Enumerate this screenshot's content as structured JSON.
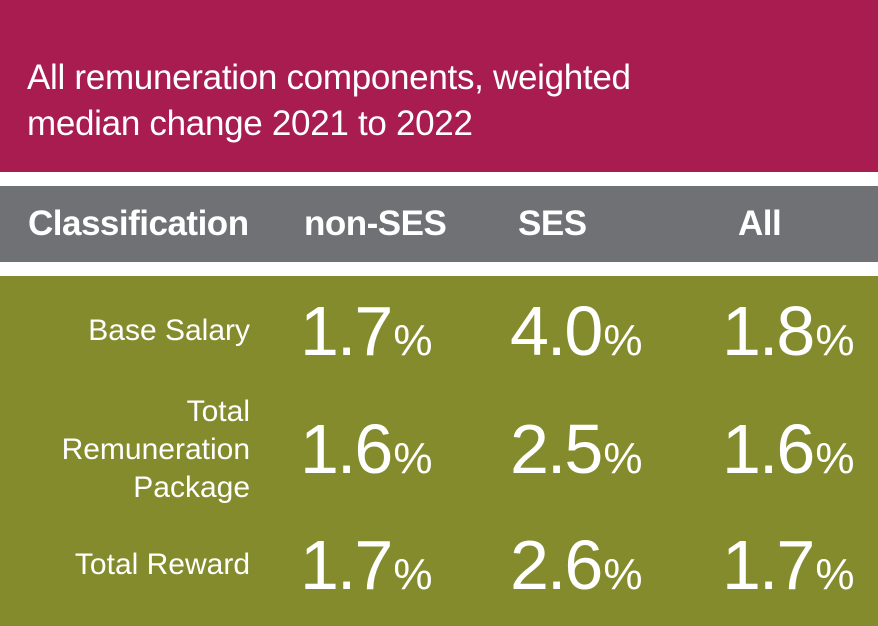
{
  "title": {
    "line1": "All remuneration components, weighted",
    "line2": "median change 2021 to 2022"
  },
  "header": {
    "classification": "Classification",
    "non_ses": "non-SES",
    "ses": "SES",
    "all": "All"
  },
  "rows": [
    {
      "label_lines": [
        "Base Salary"
      ],
      "non_ses": "1.7",
      "ses": "4.0",
      "all": "1.8"
    },
    {
      "label_lines": [
        "Total",
        "Remuneration",
        "Package"
      ],
      "non_ses": "1.6",
      "ses": "2.5",
      "all": "1.6"
    },
    {
      "label_lines": [
        "Total Reward"
      ],
      "non_ses": "1.7",
      "ses": "2.6",
      "all": "1.7"
    }
  ],
  "percent_sign": "%",
  "colors": {
    "title_bg": "#a81c4f",
    "header_bg": "#707175",
    "data_bg": "#838b2c",
    "text": "#ffffff"
  }
}
